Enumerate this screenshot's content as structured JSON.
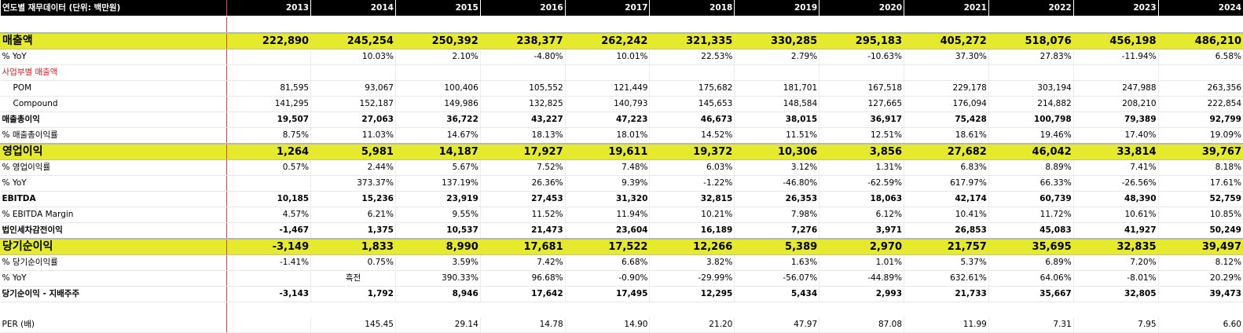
{
  "title": "연도별 재무데이터 (단위: 백만원)",
  "years": [
    "2013",
    "2014",
    "2015",
    "2016",
    "2017",
    "2018",
    "2019",
    "2020",
    "2021",
    "2022",
    "2023",
    "2024"
  ],
  "rows": [
    {
      "label": "",
      "style": "blank",
      "values": [
        "",
        "",
        "",
        "",
        "",
        "",
        "",
        "",
        "",
        "",
        "",
        ""
      ]
    },
    {
      "label": "매출액",
      "style": "hl",
      "values": [
        "222,890",
        "245,254",
        "250,392",
        "238,377",
        "262,242",
        "321,335",
        "330,285",
        "295,183",
        "405,272",
        "518,076",
        "456,198",
        "486,210"
      ]
    },
    {
      "label": "% YoY",
      "style": "",
      "values": [
        "",
        "10.03%",
        "2.10%",
        "-4.80%",
        "10.01%",
        "22.53%",
        "2.79%",
        "-10.63%",
        "37.30%",
        "27.83%",
        "-11.94%",
        "6.58%"
      ]
    },
    {
      "label": "사업부별 매출액",
      "style": "red",
      "values": [
        "",
        "",
        "",
        "",
        "",
        "",
        "",
        "",
        "",
        "",
        "",
        ""
      ]
    },
    {
      "label": "POM",
      "style": "ind",
      "values": [
        "81,595",
        "93,067",
        "100,406",
        "105,552",
        "121,449",
        "175,682",
        "181,701",
        "167,518",
        "229,178",
        "303,194",
        "247,988",
        "263,356"
      ]
    },
    {
      "label": "Compound",
      "style": "ind",
      "values": [
        "141,295",
        "152,187",
        "149,986",
        "132,825",
        "140,793",
        "145,653",
        "148,584",
        "127,665",
        "176,094",
        "214,882",
        "208,210",
        "222,854"
      ]
    },
    {
      "label": "매출총이익",
      "style": "bold",
      "values": [
        "19,507",
        "27,063",
        "36,722",
        "43,227",
        "47,223",
        "46,673",
        "38,015",
        "36,917",
        "75,428",
        "100,798",
        "79,389",
        "92,799"
      ]
    },
    {
      "label": "% 매출총이익률",
      "style": "",
      "values": [
        "8.75%",
        "11.03%",
        "14.67%",
        "18.13%",
        "18.01%",
        "14.52%",
        "11.51%",
        "12.51%",
        "18.61%",
        "19.46%",
        "17.40%",
        "19.09%"
      ]
    },
    {
      "label": "영업이익",
      "style": "hl",
      "values": [
        "1,264",
        "5,981",
        "14,187",
        "17,927",
        "19,611",
        "19,372",
        "10,306",
        "3,856",
        "27,682",
        "46,042",
        "33,814",
        "39,767"
      ]
    },
    {
      "label": "% 영업이익률",
      "style": "",
      "values": [
        "0.57%",
        "2.44%",
        "5.67%",
        "7.52%",
        "7.48%",
        "6.03%",
        "3.12%",
        "1.31%",
        "6.83%",
        "8.89%",
        "7.41%",
        "8.18%"
      ]
    },
    {
      "label": "% YoY",
      "style": "",
      "values": [
        "",
        "373.37%",
        "137.19%",
        "26.36%",
        "9.39%",
        "-1.22%",
        "-46.80%",
        "-62.59%",
        "617.97%",
        "66.33%",
        "-26.56%",
        "17.61%"
      ]
    },
    {
      "label": "EBITDA",
      "style": "bold",
      "values": [
        "10,185",
        "15,236",
        "23,919",
        "27,453",
        "31,320",
        "32,815",
        "26,353",
        "18,063",
        "42,174",
        "60,739",
        "48,390",
        "52,759"
      ]
    },
    {
      "label": "% EBITDA Margin",
      "style": "",
      "values": [
        "4.57%",
        "6.21%",
        "9.55%",
        "11.52%",
        "11.94%",
        "10.21%",
        "7.98%",
        "6.12%",
        "10.41%",
        "11.72%",
        "10.61%",
        "10.85%"
      ]
    },
    {
      "label": "법인세차감전이익",
      "style": "bold",
      "values": [
        "-1,467",
        "1,375",
        "10,537",
        "21,473",
        "23,604",
        "16,189",
        "7,276",
        "3,971",
        "26,853",
        "45,083",
        "41,927",
        "50,249"
      ]
    },
    {
      "label": "당기순이익",
      "style": "hl",
      "values": [
        "-3,149",
        "1,833",
        "8,990",
        "17,681",
        "17,522",
        "12,266",
        "5,389",
        "2,970",
        "21,757",
        "35,695",
        "32,835",
        "39,497"
      ]
    },
    {
      "label": "% 당기순이익률",
      "style": "",
      "values": [
        "-1.41%",
        "0.75%",
        "3.59%",
        "7.42%",
        "6.68%",
        "3.82%",
        "1.63%",
        "1.01%",
        "5.37%",
        "6.89%",
        "7.20%",
        "8.12%"
      ]
    },
    {
      "label": "% YoY",
      "style": "",
      "values": [
        "",
        "흑전",
        "390.33%",
        "96.68%",
        "-0.90%",
        "-29.99%",
        "-56.07%",
        "-44.89%",
        "632.61%",
        "64.06%",
        "-8.01%",
        "20.29%"
      ]
    },
    {
      "label": "당기순이익 - 지배주주",
      "style": "bold",
      "values": [
        "-3,143",
        "1,792",
        "8,946",
        "17,642",
        "17,495",
        "12,295",
        "5,434",
        "2,993",
        "21,733",
        "35,667",
        "32,805",
        "39,473"
      ]
    },
    {
      "label": "",
      "style": "blank",
      "values": [
        "",
        "",
        "",
        "",
        "",
        "",
        "",
        "",
        "",
        "",
        "",
        ""
      ]
    },
    {
      "label": "PER (배)",
      "style": "",
      "values": [
        "",
        "145.45",
        "29.14",
        "14.78",
        "14.90",
        "21.20",
        "47.97",
        "87.08",
        "11.99",
        "7.31",
        "7.95",
        "6.60"
      ]
    }
  ]
}
